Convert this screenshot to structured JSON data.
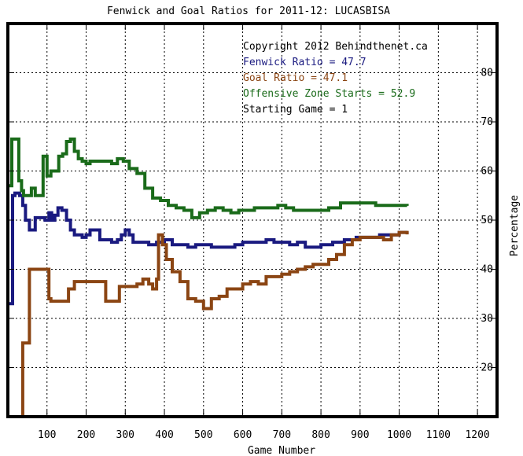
{
  "chart_data": {
    "type": "line",
    "title": "Fenwick and Goal Ratios for 2011-12: LUCASBISA",
    "xlabel": "Game Number",
    "ylabel": "Percentage",
    "xlim": [
      0,
      1250
    ],
    "ylim": [
      10,
      90
    ],
    "x_ticks": [
      100,
      200,
      300,
      400,
      500,
      600,
      700,
      800,
      900,
      1000,
      1100,
      1200
    ],
    "y_ticks": [
      20,
      30,
      40,
      50,
      60,
      70,
      80
    ],
    "grid": true,
    "annotations": [
      {
        "text": "Copyright 2012 Behindthenet.ca",
        "color": "#000000"
      },
      {
        "text": "Fenwick Ratio = 47.7",
        "color": "#1a1a80"
      },
      {
        "text": "Goal Ratio = 47.1",
        "color": "#8b4513"
      },
      {
        "text": "Offensive Zone Starts = 52.9",
        "color": "#1a6b1a"
      },
      {
        "text": "Starting Game = 1",
        "color": "#000000"
      }
    ],
    "series": [
      {
        "color": "#1a1a80",
        "x": [
          1,
          12,
          18,
          30,
          38,
          45,
          55,
          62,
          70,
          85,
          95,
          105,
          112,
          120,
          128,
          138,
          150,
          160,
          170,
          180,
          190,
          200,
          210,
          220,
          235,
          250,
          265,
          280,
          290,
          300,
          310,
          320,
          340,
          360,
          380,
          400,
          420,
          440,
          460,
          480,
          500,
          520,
          540,
          560,
          580,
          600,
          620,
          640,
          660,
          680,
          700,
          720,
          740,
          760,
          780,
          800,
          830,
          860,
          890,
          920,
          950,
          980,
          1000,
          1020
        ],
        "y": [
          33,
          55,
          55.5,
          55,
          53,
          50,
          48,
          48,
          50.5,
          50.5,
          50,
          51.5,
          50,
          51,
          52.5,
          52,
          50,
          48,
          47,
          47,
          46.5,
          47,
          48,
          48,
          46,
          46,
          45.5,
          46,
          47,
          48,
          47,
          45.5,
          45.5,
          45,
          45.5,
          46,
          45,
          45,
          44.5,
          45,
          45,
          44.5,
          44.5,
          44.5,
          45,
          45.5,
          45.5,
          45.5,
          46,
          45.5,
          45.5,
          45,
          45.5,
          44.5,
          44.5,
          45,
          45.5,
          46,
          46.5,
          46.5,
          47,
          47,
          47.5,
          47.7
        ]
      },
      {
        "color": "#8b4513",
        "x": [
          30,
          38,
          48,
          55,
          70,
          85,
          95,
          105,
          110,
          130,
          145,
          155,
          170,
          180,
          210,
          235,
          250,
          260,
          275,
          285,
          290,
          310,
          330,
          345,
          360,
          370,
          380,
          385,
          395,
          405,
          420,
          440,
          460,
          480,
          500,
          520,
          540,
          560,
          580,
          600,
          620,
          640,
          660,
          680,
          700,
          720,
          740,
          760,
          780,
          800,
          820,
          840,
          860,
          880,
          900,
          920,
          940,
          960,
          980,
          1000,
          1020
        ],
        "y": [
          10,
          25,
          25,
          40,
          40,
          40,
          40,
          34,
          33.5,
          33.5,
          33.5,
          36,
          37.5,
          37.5,
          37.5,
          37.5,
          33.5,
          33.5,
          33.5,
          36.5,
          36.5,
          36.5,
          37,
          38,
          37,
          36,
          38,
          47,
          45,
          42,
          39.5,
          37.5,
          34,
          33.5,
          32,
          34,
          34.5,
          36,
          36,
          37,
          37.5,
          37,
          38.5,
          38.5,
          39,
          39.5,
          40,
          40.5,
          41,
          41,
          42,
          43,
          45,
          46,
          46.5,
          46.5,
          46.5,
          46,
          47,
          47.5,
          47.1
        ]
      },
      {
        "color": "#1a6b1a",
        "x": [
          1,
          10,
          20,
          28,
          35,
          40,
          48,
          60,
          70,
          90,
          100,
          110,
          130,
          140,
          150,
          160,
          170,
          180,
          190,
          200,
          210,
          220,
          235,
          250,
          265,
          280,
          295,
          310,
          330,
          350,
          370,
          390,
          410,
          430,
          450,
          470,
          490,
          510,
          530,
          550,
          570,
          590,
          610,
          630,
          650,
          670,
          690,
          710,
          730,
          760,
          790,
          820,
          850,
          880,
          910,
          940,
          970,
          1000,
          1020
        ],
        "y": [
          57,
          66.5,
          66.5,
          58,
          56,
          55,
          55,
          56.5,
          55,
          63,
          59,
          60,
          63,
          63.5,
          66,
          66.5,
          64,
          62.5,
          62,
          61.5,
          62,
          62,
          62,
          62,
          61.5,
          62.5,
          62,
          60.5,
          59.5,
          56.5,
          54.5,
          54,
          53,
          52.5,
          52,
          50.5,
          51.5,
          52,
          52.5,
          52,
          51.5,
          52,
          52,
          52.5,
          52.5,
          52.5,
          53,
          52.5,
          52,
          52,
          52,
          52.5,
          53.5,
          53.5,
          53.5,
          53,
          53,
          53,
          52.9
        ]
      }
    ]
  }
}
